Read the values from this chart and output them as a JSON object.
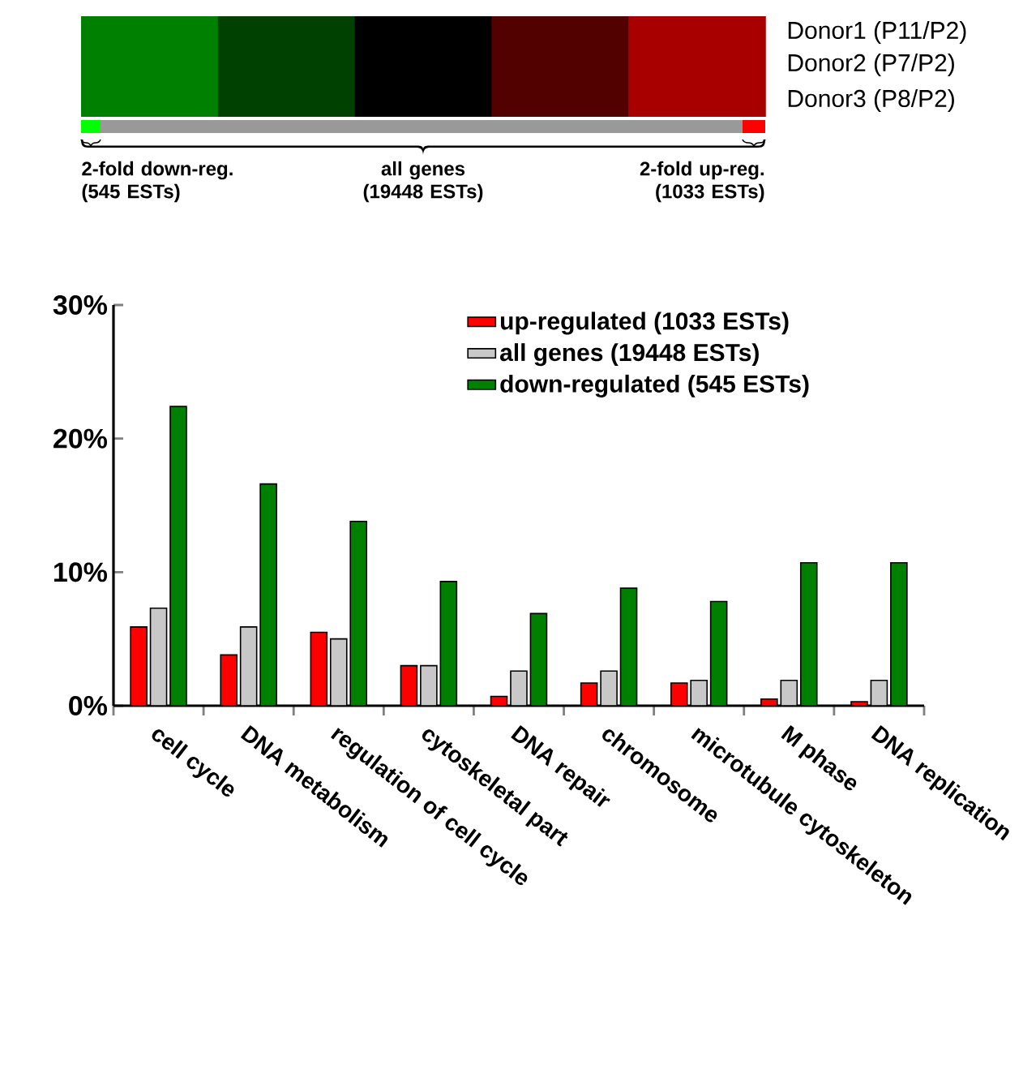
{
  "chart_data": {
    "type": "bar",
    "categories": [
      "cell cycle",
      "DNA metabolism",
      "regulation of cell cycle",
      "cytoskeletal part",
      "DNA repair",
      "chromosome",
      "microtubule cytoskeleton",
      "M phase",
      "DNA replication"
    ],
    "series": [
      {
        "name": "up-regulated (1033 ESTs)",
        "color": "#ff0000",
        "values": [
          5.9,
          3.8,
          5.5,
          3.0,
          0.7,
          1.7,
          1.7,
          0.5,
          0.3
        ]
      },
      {
        "name": "all genes (19448 ESTs)",
        "color": "#c8c8c8",
        "values": [
          7.3,
          5.9,
          5.0,
          3.0,
          2.6,
          2.6,
          1.9,
          1.9,
          1.9
        ]
      },
      {
        "name": "down-regulated (545 ESTs)",
        "color": "#008000",
        "values": [
          22.4,
          16.6,
          13.8,
          9.3,
          6.9,
          8.8,
          7.8,
          10.7,
          10.7
        ]
      }
    ],
    "ylim": [
      0,
      30
    ],
    "yticks": [
      {
        "value": 0,
        "label": "0%"
      },
      {
        "value": 10,
        "label": "10%"
      },
      {
        "value": 20,
        "label": "20%"
      },
      {
        "value": 30,
        "label": "30%"
      }
    ],
    "legend": "top right",
    "annotations": [
      "Donor1 (P11/P2)",
      "Donor2 (P7/P2)",
      "Donor3 (P8/P2)",
      "2-fold down-reg. (545 ESTs)",
      "all genes (19448 ESTs)",
      "2-fold up-reg. (1033 ESTs)"
    ]
  }
}
